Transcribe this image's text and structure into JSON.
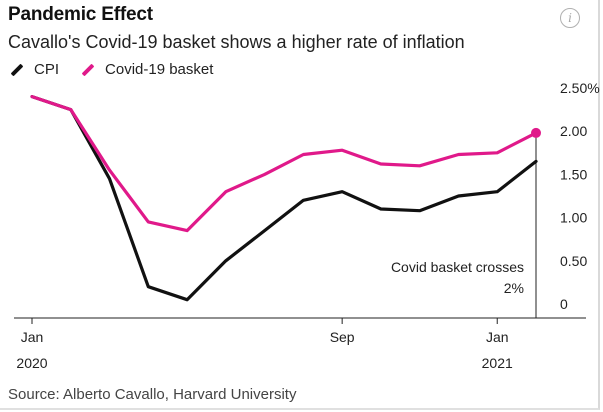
{
  "chart_data": {
    "type": "line",
    "title": "Pandemic Effect",
    "subtitle": "Cavallo's Covid-19 basket shows a higher rate of inflation",
    "x": [
      "2020-01",
      "2020-02",
      "2020-03",
      "2020-04",
      "2020-05",
      "2020-06",
      "2020-07",
      "2020-08",
      "2020-09",
      "2020-10",
      "2020-11",
      "2020-12",
      "2021-01",
      "2021-02"
    ],
    "series": [
      {
        "name": "CPI",
        "color": "#111111",
        "values": [
          2.4,
          2.25,
          1.45,
          0.2,
          0.05,
          0.5,
          0.85,
          1.2,
          1.3,
          1.1,
          1.08,
          1.25,
          1.3,
          1.65
        ]
      },
      {
        "name": "Covid-19 basket",
        "color": "#e0198a",
        "values": [
          2.4,
          2.25,
          1.55,
          0.95,
          0.85,
          1.3,
          1.5,
          1.73,
          1.78,
          1.62,
          1.6,
          1.73,
          1.75,
          1.98
        ]
      }
    ],
    "ylim": [
      0,
      2.5
    ],
    "y_ticks": [
      {
        "value": 0,
        "label": "0"
      },
      {
        "value": 0.5,
        "label": "0.50"
      },
      {
        "value": 1.0,
        "label": "1.00"
      },
      {
        "value": 1.5,
        "label": "1.50"
      },
      {
        "value": 2.0,
        "label": "2.00"
      },
      {
        "value": 2.5,
        "label": "2.50%"
      }
    ],
    "x_ticks": [
      {
        "value": "2020-01",
        "label": "Jan",
        "sublabel": "2020"
      },
      {
        "value": "2020-09",
        "label": "Sep",
        "sublabel": ""
      },
      {
        "value": "2021-01",
        "label": "Jan",
        "sublabel": "2021"
      }
    ],
    "y_axis_side": "right",
    "grid": false,
    "legend": "top-left",
    "annotation": {
      "lines": [
        "Covid basket crosses",
        "2%"
      ],
      "x": "2021-02",
      "y": 1.98
    }
  },
  "legend_items": [
    {
      "label": "CPI",
      "color": "#111111"
    },
    {
      "label": "Covid-19 basket",
      "color": "#e0198a"
    }
  ],
  "source": "Source: Alberto Cavallo, Harvard University",
  "info_icon": "i"
}
